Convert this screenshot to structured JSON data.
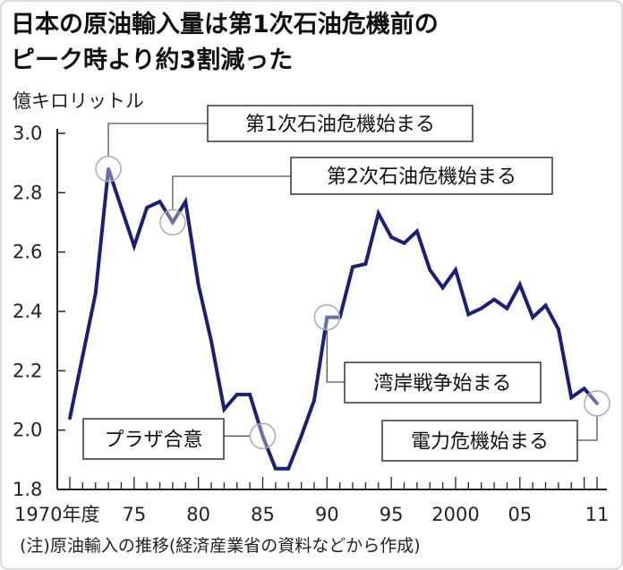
{
  "chart_data": {
    "type": "line",
    "title": [
      "日本の原油輸入量は第1次石油危機前の",
      "ピーク時より約3割減った"
    ],
    "ylabel": "億キロリットル",
    "xlabel": "",
    "ylim": [
      1.8,
      3.0
    ],
    "xlim": [
      1970,
      2011
    ],
    "y_ticks": [
      "3.0",
      "2.8",
      "2.6",
      "2.4",
      "2.2",
      "2.0",
      "1.8"
    ],
    "x_tick_labels": [
      "1970年度",
      "75",
      "80",
      "85",
      "90",
      "95",
      "2000",
      "05",
      "11"
    ],
    "x": [
      1970,
      1971,
      1972,
      1973,
      1974,
      1975,
      1976,
      1977,
      1978,
      1979,
      1980,
      1981,
      1982,
      1983,
      1984,
      1985,
      1986,
      1987,
      1988,
      1989,
      1990,
      1991,
      1992,
      1993,
      1994,
      1995,
      1996,
      1997,
      1998,
      1999,
      2000,
      2001,
      2002,
      2003,
      2004,
      2005,
      2006,
      2007,
      2008,
      2009,
      2010,
      2011
    ],
    "values": [
      2.04,
      2.25,
      2.46,
      2.88,
      2.75,
      2.62,
      2.75,
      2.77,
      2.7,
      2.77,
      2.49,
      2.3,
      2.07,
      2.12,
      2.12,
      1.98,
      1.87,
      1.87,
      1.98,
      2.1,
      2.38,
      2.38,
      2.55,
      2.56,
      2.73,
      2.65,
      2.63,
      2.67,
      2.54,
      2.48,
      2.54,
      2.39,
      2.41,
      2.44,
      2.41,
      2.49,
      2.38,
      2.42,
      2.34,
      2.11,
      2.14,
      2.09
    ],
    "line_color": "#1a1f7a",
    "grid": false,
    "annotations": [
      {
        "text": "第1次石油危機始まる",
        "year": 1973
      },
      {
        "text": "第2次石油危機始まる",
        "year": 1978
      },
      {
        "text": "プラザ合意",
        "year": 1985
      },
      {
        "text": "湾岸戦争始まる",
        "year": 1990
      },
      {
        "text": "電力危機始まる",
        "year": 2011
      }
    ],
    "note": "(注)原油輸入の推移(経済産業省の資料などから作成)"
  }
}
